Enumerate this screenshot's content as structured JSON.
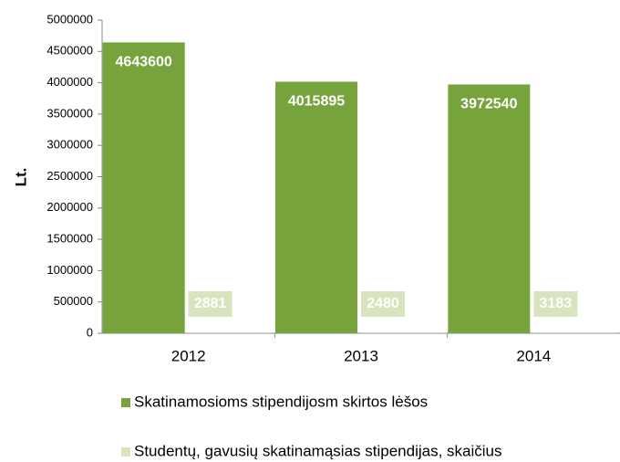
{
  "chart_data": {
    "type": "bar",
    "y_label": "Lt.",
    "categories": [
      "2012",
      "2013",
      "2014"
    ],
    "series": [
      {
        "name": "Skatinamosioms stipendijosm skirtos lėšos",
        "color": "#77a33c",
        "values": [
          4643600,
          4015895,
          3972540
        ]
      },
      {
        "name": "Studentų, gavusių skatinamąsias stipendijas, skaičius",
        "color": "#d7e4bd",
        "values": [
          2881,
          2480,
          3183
        ]
      }
    ],
    "ylim": [
      0,
      5000000
    ],
    "yticks": [
      0,
      500000,
      1000000,
      1500000,
      2000000,
      2500000,
      3000000,
      3500000,
      4000000,
      4500000,
      5000000
    ]
  }
}
